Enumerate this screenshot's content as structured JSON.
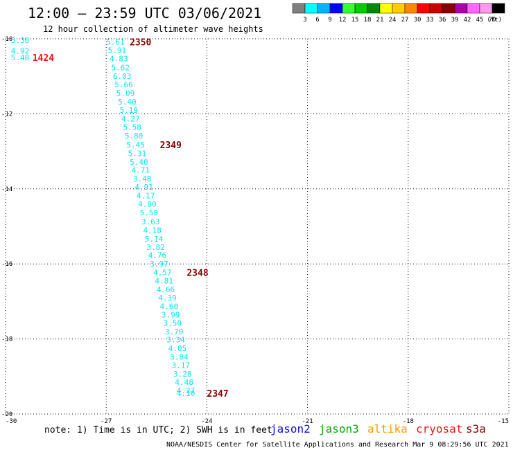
{
  "header": {
    "title": "12:00 – 23:59 UTC 03/06/2021",
    "subtitle": "12 hour collection of altimeter wave heights"
  },
  "legend": {
    "unit": "(ft)",
    "bins": [
      {
        "label": "3",
        "color": "#7f7f7f"
      },
      {
        "label": "6",
        "color": "#00ffff"
      },
      {
        "label": "9",
        "color": "#00b4ff"
      },
      {
        "label": "12",
        "color": "#0000ff"
      },
      {
        "label": "15",
        "color": "#33ff33"
      },
      {
        "label": "18",
        "color": "#00cc00"
      },
      {
        "label": "21",
        "color": "#008800"
      },
      {
        "label": "24",
        "color": "#ffff00"
      },
      {
        "label": "27",
        "color": "#ffcc00"
      },
      {
        "label": "30",
        "color": "#ff8800"
      },
      {
        "label": "33",
        "color": "#ff0000"
      },
      {
        "label": "36",
        "color": "#cc0000"
      },
      {
        "label": "39",
        "color": "#880000"
      },
      {
        "label": "42",
        "color": "#aa00aa"
      },
      {
        "label": "45",
        "color": "#ff66ff"
      },
      {
        "label": "70",
        "color": "#ff99ee"
      },
      {
        "label": "",
        "color": "#000000"
      }
    ]
  },
  "chart_data": {
    "type": "scatter",
    "xlim": [
      -30,
      -15
    ],
    "ylim": [
      -20,
      -10
    ],
    "xticks": [
      -30,
      -27,
      -24,
      -21,
      -18,
      -15
    ],
    "yticks": [
      -10,
      -12,
      -14,
      -16,
      -18,
      -20
    ],
    "grid": true,
    "swh_color": "#00e5ee",
    "points": [
      {
        "x": -29.84,
        "y": -10.04,
        "v": "5.30"
      },
      {
        "x": -29.84,
        "y": -10.32,
        "v": "4.92"
      },
      {
        "x": -29.84,
        "y": -10.5,
        "v": "5.48"
      },
      {
        "x": -27.0,
        "y": -10.08,
        "v": "5.61"
      },
      {
        "x": -26.95,
        "y": -10.3,
        "v": "5.91"
      },
      {
        "x": -26.9,
        "y": -10.53,
        "v": "4.83"
      },
      {
        "x": -26.85,
        "y": -10.77,
        "v": "5.62"
      },
      {
        "x": -26.8,
        "y": -11.0,
        "v": "6.03"
      },
      {
        "x": -26.75,
        "y": -11.22,
        "v": "5.66"
      },
      {
        "x": -26.7,
        "y": -11.45,
        "v": "5.09"
      },
      {
        "x": -26.65,
        "y": -11.68,
        "v": "5.40"
      },
      {
        "x": -26.6,
        "y": -11.9,
        "v": "5.19"
      },
      {
        "x": -26.55,
        "y": -12.13,
        "v": "4.27"
      },
      {
        "x": -26.5,
        "y": -12.35,
        "v": "5.58"
      },
      {
        "x": -26.45,
        "y": -12.58,
        "v": "5.80"
      },
      {
        "x": -26.4,
        "y": -12.82,
        "v": "5.45"
      },
      {
        "x": -26.35,
        "y": -13.05,
        "v": "5.31"
      },
      {
        "x": -26.3,
        "y": -13.28,
        "v": "5.40"
      },
      {
        "x": -26.25,
        "y": -13.5,
        "v": "4.71"
      },
      {
        "x": -26.2,
        "y": -13.73,
        "v": "3.48"
      },
      {
        "x": -26.15,
        "y": -13.95,
        "v": "4.91"
      },
      {
        "x": -26.1,
        "y": -14.18,
        "v": "4.17"
      },
      {
        "x": -26.05,
        "y": -14.4,
        "v": "4.80"
      },
      {
        "x": -26.0,
        "y": -14.63,
        "v": "5.58"
      },
      {
        "x": -25.95,
        "y": -14.87,
        "v": "3.63"
      },
      {
        "x": -25.9,
        "y": -15.1,
        "v": "4.18"
      },
      {
        "x": -25.85,
        "y": -15.33,
        "v": "5.14"
      },
      {
        "x": -25.8,
        "y": -15.55,
        "v": "3.82"
      },
      {
        "x": -25.75,
        "y": -15.77,
        "v": "4.76"
      },
      {
        "x": -25.7,
        "y": -16.0,
        "v": "3.97"
      },
      {
        "x": -25.6,
        "y": -16.23,
        "v": "4.57"
      },
      {
        "x": -25.55,
        "y": -16.45,
        "v": "4.81"
      },
      {
        "x": -25.5,
        "y": -16.68,
        "v": "4.66"
      },
      {
        "x": -25.45,
        "y": -16.9,
        "v": "4.39"
      },
      {
        "x": -25.4,
        "y": -17.13,
        "v": "4.60"
      },
      {
        "x": -25.35,
        "y": -17.35,
        "v": "3.99"
      },
      {
        "x": -25.3,
        "y": -17.57,
        "v": "3.50"
      },
      {
        "x": -25.25,
        "y": -17.8,
        "v": "3.70"
      },
      {
        "x": -25.2,
        "y": -18.02,
        "v": "3.34"
      },
      {
        "x": -25.15,
        "y": -18.25,
        "v": "4.05"
      },
      {
        "x": -25.1,
        "y": -18.48,
        "v": "3.84"
      },
      {
        "x": -25.05,
        "y": -18.7,
        "v": "3.17"
      },
      {
        "x": -25.0,
        "y": -18.93,
        "v": "3.28"
      },
      {
        "x": -24.95,
        "y": -19.15,
        "v": "4.48"
      },
      {
        "x": -24.9,
        "y": -19.37,
        "v": "4.27"
      },
      {
        "x": -24.9,
        "y": -19.45,
        "v": "4.10"
      }
    ],
    "time_labels": [
      {
        "x": -29.2,
        "y": -10.5,
        "text": "1424",
        "color": "#ee1111"
      },
      {
        "x": -26.3,
        "y": -10.08,
        "text": "2350",
        "color": "#880000"
      },
      {
        "x": -25.4,
        "y": -12.82,
        "text": "2349",
        "color": "#880000"
      },
      {
        "x": -24.6,
        "y": -16.23,
        "text": "2348",
        "color": "#880000"
      },
      {
        "x": -24.0,
        "y": -19.45,
        "text": "2347",
        "color": "#880000"
      }
    ]
  },
  "footer": {
    "note": "note: 1) Time is in UTC; 2) SWH is in feet",
    "satellites": [
      {
        "name": "jason2",
        "color": "#1010ee"
      },
      {
        "name": "jason3",
        "color": "#00aa00"
      },
      {
        "name": "altika",
        "color": "#ff9900"
      },
      {
        "name": "cryosat",
        "color": "#ee1111"
      },
      {
        "name": "s3a",
        "color": "#880000"
      }
    ],
    "credit": "NOAA/NESDIS Center for Satellite Applications and Research   Mar  9 08:29:56 UTC 2021"
  }
}
